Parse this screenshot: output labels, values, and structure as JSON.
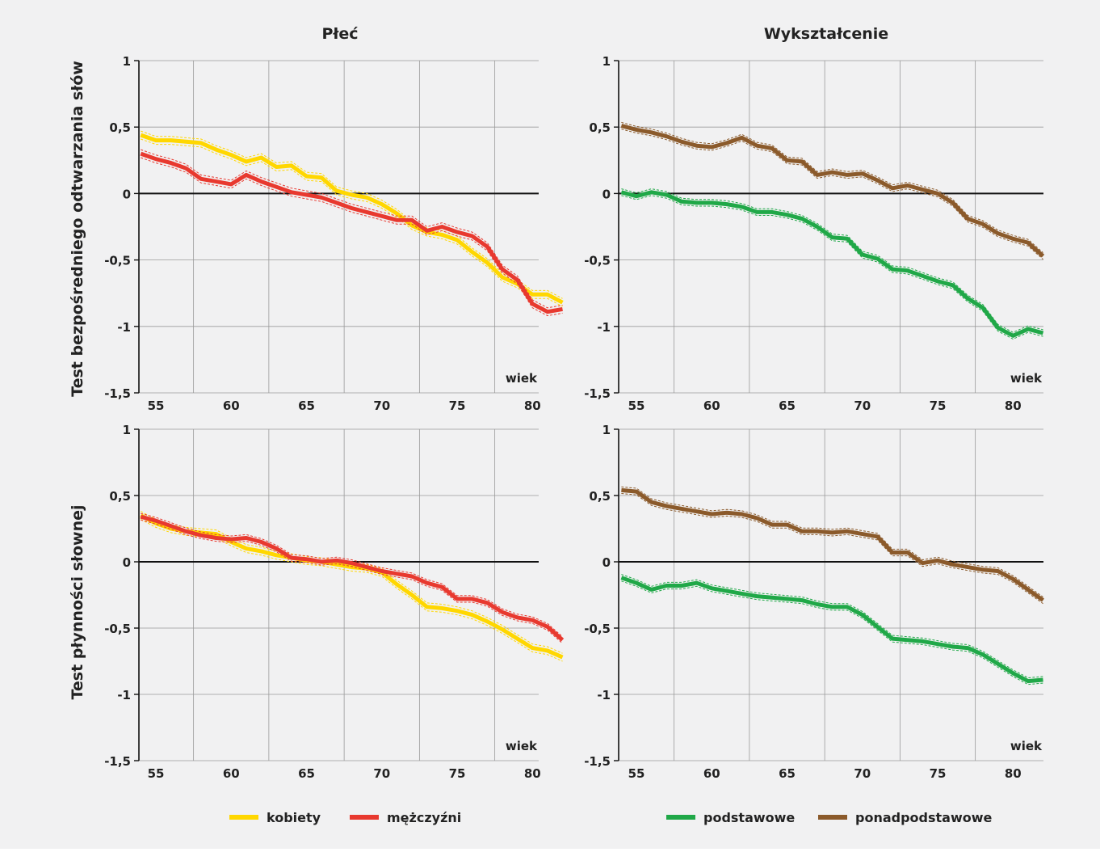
{
  "column_titles": [
    "Płeć",
    "Wykształcenie"
  ],
  "row_labels": [
    "Test bezpośredniego odtwarzania słów",
    "Test płynności słownej"
  ],
  "axis_word": "wiek",
  "legend_left": [
    {
      "name": "kobiety",
      "color": "#ffd700"
    },
    {
      "name": "mężczyźni",
      "color": "#e8392f"
    }
  ],
  "legend_right": [
    {
      "name": "podstawowe",
      "color": "#20a848"
    },
    {
      "name": "ponadpodstawowe",
      "color": "#8b5a2b"
    }
  ],
  "chart_data": [
    {
      "type": "line",
      "title": "Płeć",
      "ylabel": "Test bezpośredniego odtwarzania słów",
      "xlabel": "wiek",
      "xlim": [
        53,
        82.5
      ],
      "ylim": [
        -1.5,
        1
      ],
      "xticks": [
        55,
        60,
        65,
        70,
        75,
        80
      ],
      "yticks": [
        1,
        0.5,
        0,
        -0.5,
        -1,
        -1.5
      ],
      "ytick_labels": [
        "1",
        "0,5",
        "0",
        "-0,5",
        "-1",
        "-1,5"
      ],
      "x": [
        54,
        55,
        56,
        57,
        58,
        59,
        60,
        61,
        62,
        63,
        64,
        65,
        66,
        67,
        68,
        69,
        70,
        71,
        72,
        73,
        74,
        75,
        76,
        77,
        78,
        79,
        80,
        81,
        82
      ],
      "series": [
        {
          "name": "kobiety",
          "color": "#ffd700",
          "band": 0.03,
          "values": [
            0.44,
            0.4,
            0.4,
            0.39,
            0.38,
            0.33,
            0.29,
            0.24,
            0.27,
            0.2,
            0.21,
            0.13,
            0.12,
            0.02,
            -0.01,
            -0.03,
            -0.08,
            -0.15,
            -0.24,
            -0.29,
            -0.31,
            -0.35,
            -0.44,
            -0.52,
            -0.63,
            -0.68,
            -0.76,
            -0.76,
            -0.82
          ]
        },
        {
          "name": "mężczyźni",
          "color": "#e8392f",
          "band": 0.03,
          "values": [
            0.3,
            0.26,
            0.23,
            0.19,
            0.11,
            0.09,
            0.07,
            0.14,
            0.09,
            0.05,
            0.01,
            -0.01,
            -0.03,
            -0.07,
            -0.11,
            -0.14,
            -0.17,
            -0.2,
            -0.2,
            -0.28,
            -0.25,
            -0.29,
            -0.32,
            -0.4,
            -0.57,
            -0.65,
            -0.83,
            -0.89,
            -0.87
          ]
        }
      ]
    },
    {
      "type": "line",
      "title": "Wykształcenie",
      "xlabel": "wiek",
      "xlim": [
        53,
        82.5
      ],
      "ylim": [
        -1.5,
        1
      ],
      "xticks": [
        55,
        60,
        65,
        70,
        75,
        80
      ],
      "yticks": [
        1,
        0.5,
        0,
        -0.5,
        -1,
        -1.5
      ],
      "ytick_labels": [
        "1",
        "0,5",
        "0",
        "-0,5",
        "-1",
        "-1,5"
      ],
      "x": [
        54,
        55,
        56,
        57,
        58,
        59,
        60,
        61,
        62,
        63,
        64,
        65,
        66,
        67,
        68,
        69,
        70,
        71,
        72,
        73,
        74,
        75,
        76,
        77,
        78,
        79,
        80,
        81,
        82
      ],
      "series": [
        {
          "name": "podstawowe",
          "color": "#20a848",
          "band": 0.025,
          "values": [
            0.01,
            -0.02,
            0.01,
            -0.01,
            -0.06,
            -0.07,
            -0.07,
            -0.08,
            -0.1,
            -0.14,
            -0.14,
            -0.16,
            -0.19,
            -0.25,
            -0.33,
            -0.34,
            -0.46,
            -0.49,
            -0.57,
            -0.58,
            -0.62,
            -0.66,
            -0.69,
            -0.79,
            -0.86,
            -1.01,
            -1.07,
            -1.02,
            -1.05
          ]
        },
        {
          "name": "ponadpodstawowe",
          "color": "#8b5a2b",
          "band": 0.025,
          "values": [
            0.51,
            0.48,
            0.46,
            0.43,
            0.39,
            0.36,
            0.35,
            0.38,
            0.42,
            0.36,
            0.34,
            0.25,
            0.24,
            0.14,
            0.16,
            0.14,
            0.15,
            0.1,
            0.04,
            0.06,
            0.03,
            0.0,
            -0.07,
            -0.19,
            -0.23,
            -0.3,
            -0.34,
            -0.37,
            -0.47
          ]
        }
      ]
    },
    {
      "type": "line",
      "title": "Płeć",
      "ylabel": "Test płynności słownej",
      "xlabel": "wiek",
      "xlim": [
        53,
        82.5
      ],
      "ylim": [
        -1.5,
        1
      ],
      "xticks": [
        55,
        60,
        65,
        70,
        75,
        80
      ],
      "yticks": [
        1,
        0.5,
        0,
        -0.5,
        -1,
        -1.5
      ],
      "ytick_labels": [
        "1",
        "0,5",
        "0",
        "-0,5",
        "-1",
        "-1,5"
      ],
      "x": [
        54,
        55,
        56,
        57,
        58,
        59,
        60,
        61,
        62,
        63,
        64,
        65,
        66,
        67,
        68,
        69,
        70,
        71,
        72,
        73,
        74,
        75,
        76,
        77,
        78,
        79,
        80,
        81,
        82
      ],
      "series": [
        {
          "name": "kobiety",
          "color": "#ffd700",
          "band": 0.03,
          "values": [
            0.35,
            0.29,
            0.25,
            0.23,
            0.22,
            0.21,
            0.15,
            0.1,
            0.08,
            0.05,
            0.03,
            0.01,
            0.0,
            -0.02,
            -0.04,
            -0.05,
            -0.08,
            -0.17,
            -0.25,
            -0.34,
            -0.35,
            -0.37,
            -0.4,
            -0.45,
            -0.51,
            -0.58,
            -0.65,
            -0.67,
            -0.72
          ]
        },
        {
          "name": "mężczyźni",
          "color": "#e8392f",
          "band": 0.025,
          "values": [
            0.34,
            0.31,
            0.27,
            0.23,
            0.2,
            0.18,
            0.17,
            0.18,
            0.15,
            0.1,
            0.03,
            0.02,
            0.0,
            0.01,
            -0.01,
            -0.04,
            -0.07,
            -0.09,
            -0.11,
            -0.16,
            -0.19,
            -0.28,
            -0.28,
            -0.31,
            -0.38,
            -0.42,
            -0.44,
            -0.49,
            -0.59
          ]
        }
      ]
    },
    {
      "type": "line",
      "title": "Wykształcenie",
      "xlabel": "wiek",
      "xlim": [
        53,
        82.5
      ],
      "ylim": [
        -1.5,
        1
      ],
      "xticks": [
        55,
        60,
        65,
        70,
        75,
        80
      ],
      "yticks": [
        1,
        0.5,
        0,
        -0.5,
        -1,
        -1.5
      ],
      "ytick_labels": [
        "1",
        "0,5",
        "0",
        "-0,5",
        "-1",
        "-1,5"
      ],
      "x": [
        54,
        55,
        56,
        57,
        58,
        59,
        60,
        61,
        62,
        63,
        64,
        65,
        66,
        67,
        68,
        69,
        70,
        71,
        72,
        73,
        74,
        75,
        76,
        77,
        78,
        79,
        80,
        81,
        82
      ],
      "series": [
        {
          "name": "podstawowe",
          "color": "#20a848",
          "band": 0.025,
          "values": [
            -0.12,
            -0.16,
            -0.21,
            -0.18,
            -0.18,
            -0.16,
            -0.2,
            -0.22,
            -0.24,
            -0.26,
            -0.27,
            -0.28,
            -0.29,
            -0.32,
            -0.34,
            -0.34,
            -0.4,
            -0.49,
            -0.58,
            -0.59,
            -0.6,
            -0.62,
            -0.64,
            -0.65,
            -0.7,
            -0.77,
            -0.84,
            -0.9,
            -0.89
          ]
        },
        {
          "name": "ponadpodstawowe",
          "color": "#8b5a2b",
          "band": 0.025,
          "values": [
            0.54,
            0.53,
            0.45,
            0.42,
            0.4,
            0.38,
            0.36,
            0.37,
            0.36,
            0.33,
            0.28,
            0.28,
            0.23,
            0.23,
            0.22,
            0.23,
            0.21,
            0.19,
            0.07,
            0.07,
            -0.01,
            0.01,
            -0.02,
            -0.04,
            -0.06,
            -0.07,
            -0.13,
            -0.21,
            -0.29
          ]
        }
      ]
    }
  ]
}
